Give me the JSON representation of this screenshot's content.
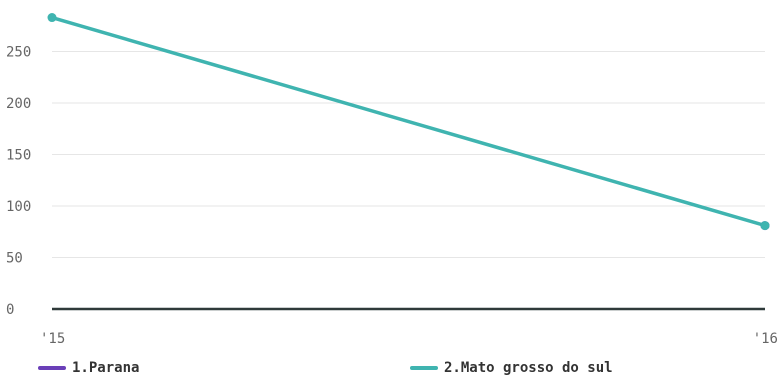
{
  "chart_data": {
    "type": "line",
    "categories": [
      "'15",
      "'16"
    ],
    "ylim": [
      0,
      290
    ],
    "yticks": [
      0,
      50,
      100,
      150,
      200,
      250
    ],
    "grid": true,
    "legend_position": "bottom",
    "series": [
      {
        "name": "1.Parana",
        "color": "#6a3fb8",
        "values": [
          null,
          81
        ]
      },
      {
        "name": "2.Mato grosso do sul",
        "color": "#3fb4b0",
        "values": [
          283,
          81
        ]
      }
    ]
  }
}
